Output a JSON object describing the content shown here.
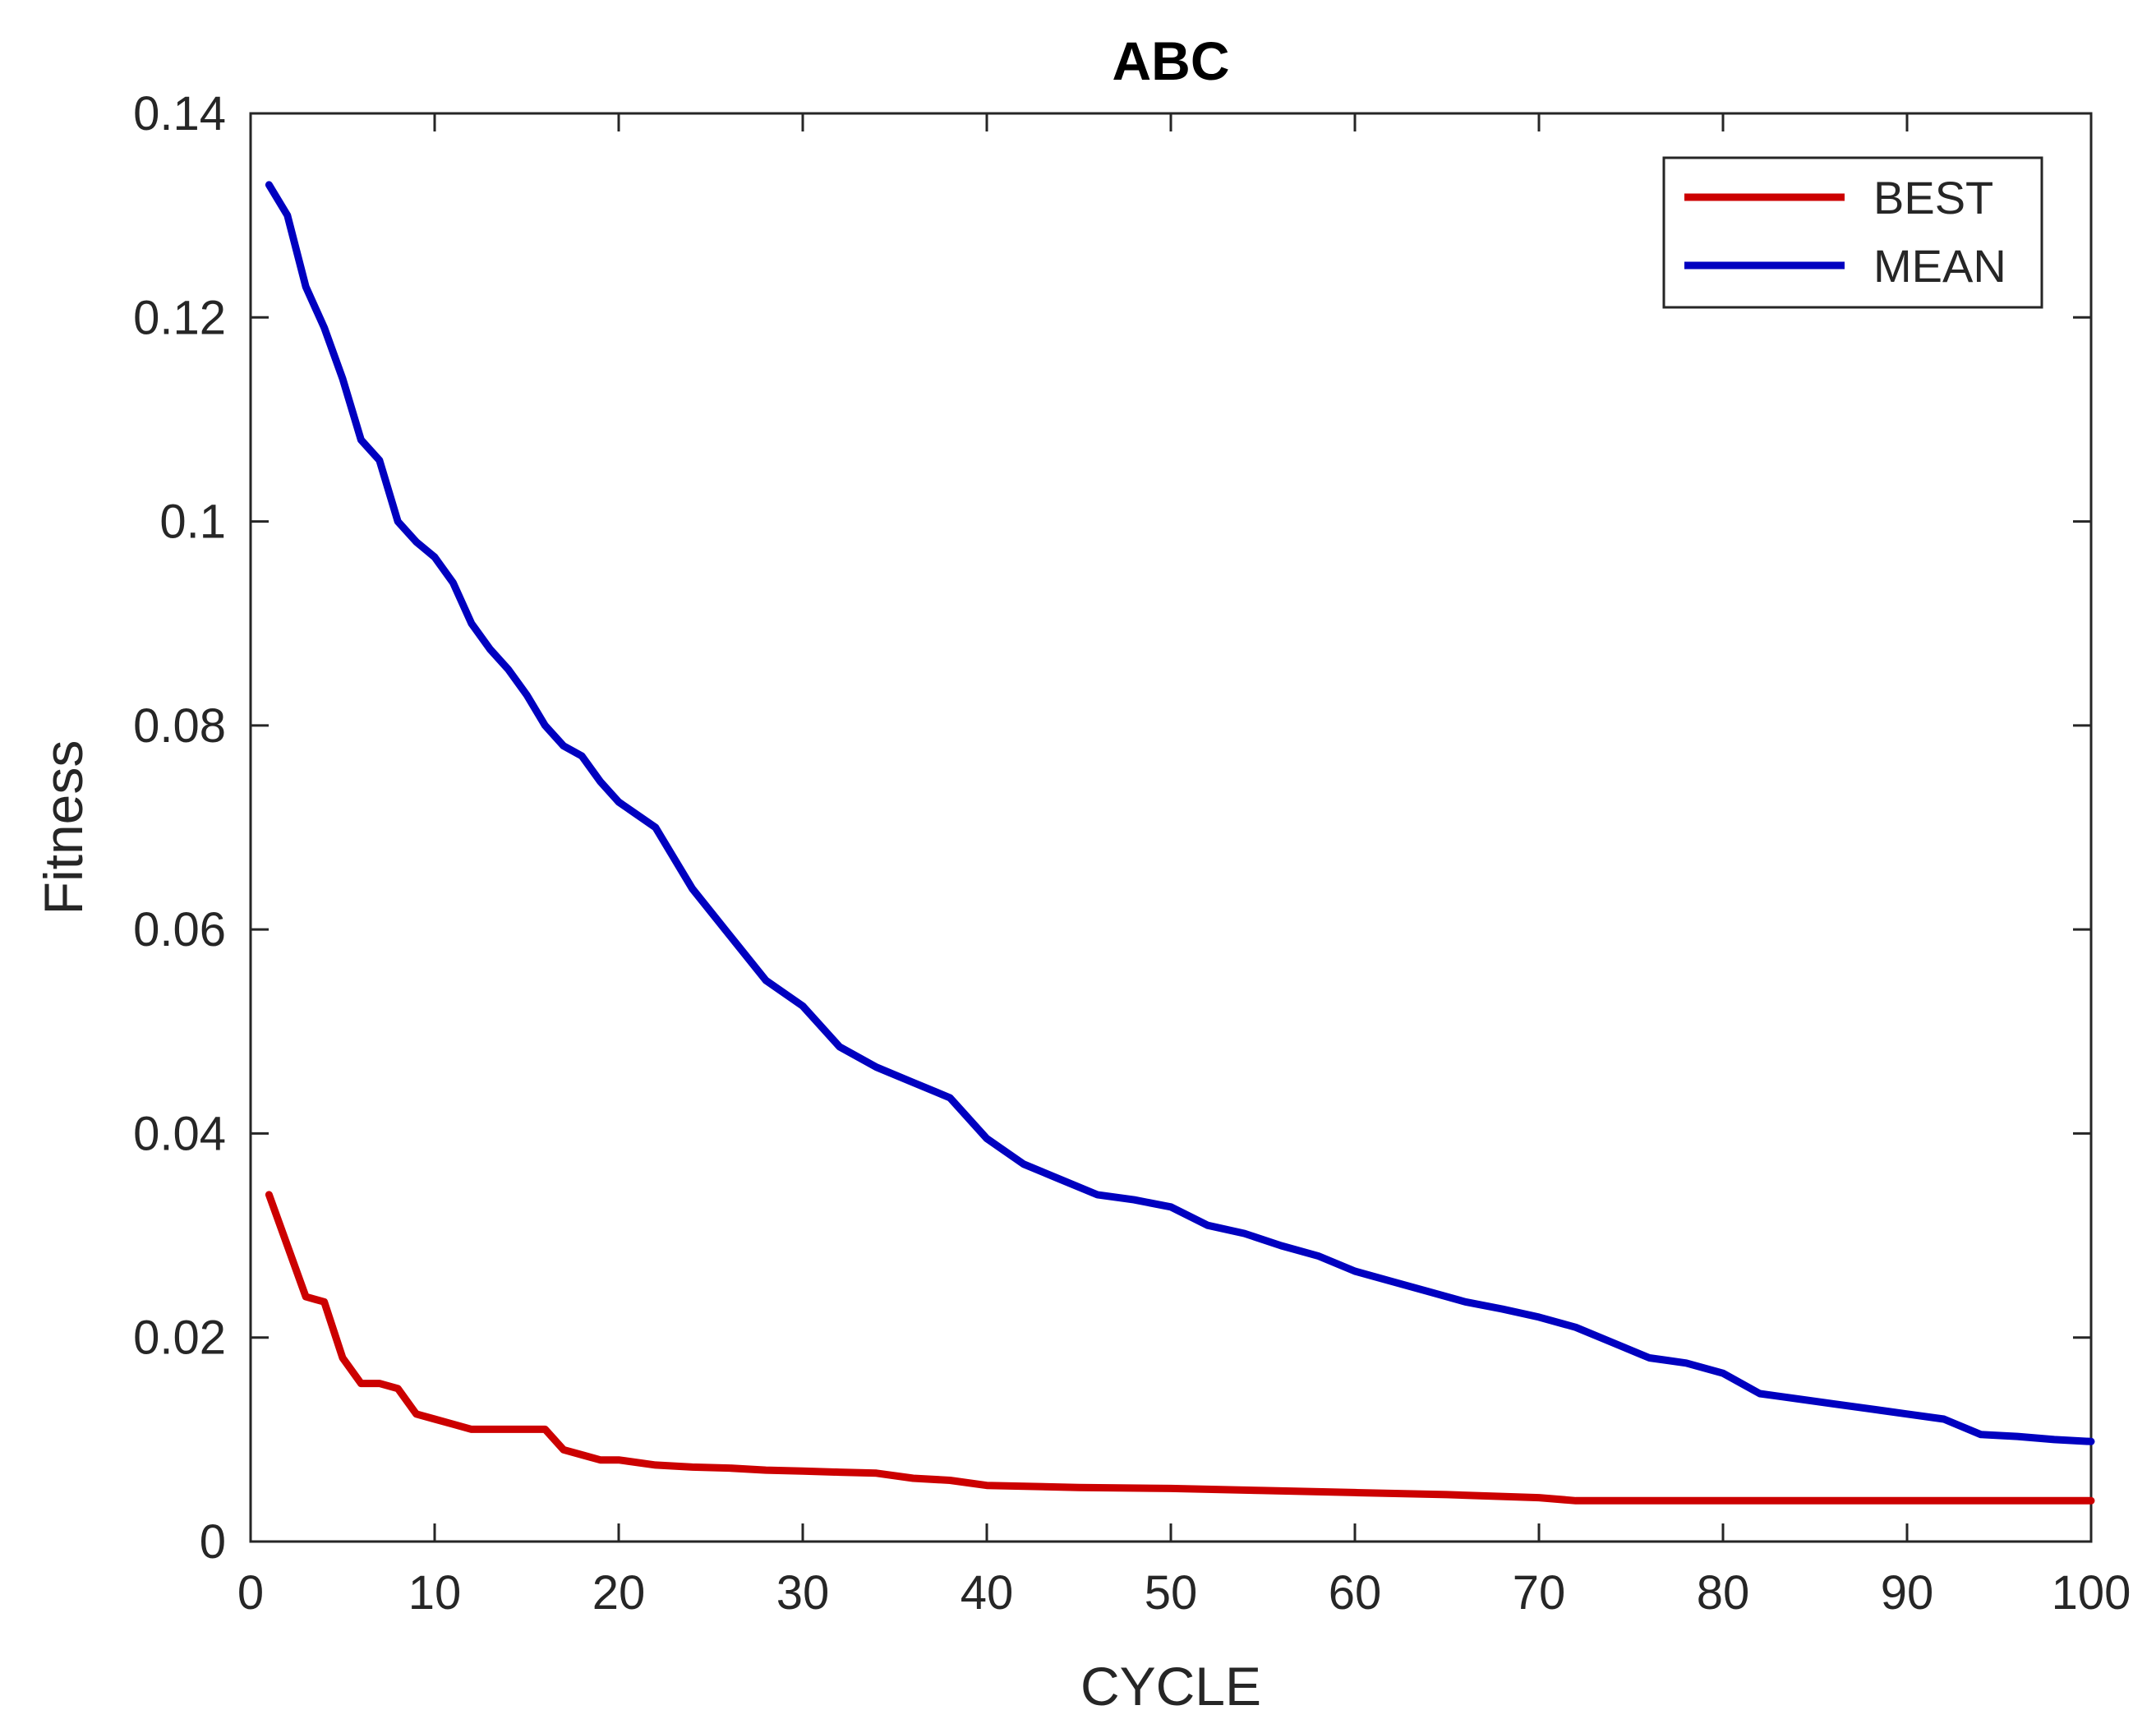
{
  "chart_data": {
    "type": "line",
    "title": "ABC",
    "xlabel": "CYCLE",
    "ylabel": "Fitness",
    "xlim": [
      0,
      100
    ],
    "ylim": [
      0,
      0.14
    ],
    "xticks": [
      0,
      10,
      20,
      30,
      40,
      50,
      60,
      70,
      80,
      90,
      100
    ],
    "xtick_labels": [
      "0",
      "10",
      "20",
      "30",
      "40",
      "50",
      "60",
      "70",
      "80",
      "90",
      "100"
    ],
    "yticks": [
      0,
      0.02,
      0.04,
      0.06,
      0.08,
      0.1,
      0.12,
      0.14
    ],
    "ytick_labels": [
      "0",
      "0.02",
      "0.04",
      "0.06",
      "0.08",
      "0.1",
      "0.12",
      "0.14"
    ],
    "grid": false,
    "legend_position": "top-right",
    "series": [
      {
        "name": "BEST",
        "color": "#cc0000",
        "x": [
          1,
          2,
          3,
          4,
          5,
          6,
          7,
          8,
          9,
          10,
          11,
          12,
          13,
          14,
          15,
          16,
          17,
          18,
          19,
          20,
          22,
          24,
          26,
          28,
          30,
          32,
          34,
          36,
          38,
          40,
          45,
          50,
          55,
          60,
          65,
          70,
          72,
          75,
          80,
          85,
          90,
          95,
          100
        ],
        "y": [
          0.034,
          0.029,
          0.024,
          0.0235,
          0.018,
          0.0155,
          0.0155,
          0.015,
          0.0125,
          0.012,
          0.0115,
          0.011,
          0.011,
          0.011,
          0.011,
          0.011,
          0.009,
          0.0085,
          0.008,
          0.008,
          0.0075,
          0.0073,
          0.0072,
          0.007,
          0.0069,
          0.0068,
          0.0067,
          0.0062,
          0.006,
          0.0055,
          0.0053,
          0.0052,
          0.005,
          0.0048,
          0.0046,
          0.0043,
          0.004,
          0.004,
          0.004,
          0.004,
          0.004,
          0.004,
          0.004
        ]
      },
      {
        "name": "MEAN",
        "color": "#0000c0",
        "x": [
          1,
          2,
          3,
          4,
          5,
          6,
          7,
          8,
          9,
          10,
          11,
          12,
          13,
          14,
          15,
          16,
          17,
          18,
          19,
          20,
          22,
          24,
          26,
          28,
          30,
          32,
          34,
          36,
          38,
          40,
          42,
          44,
          46,
          48,
          50,
          52,
          54,
          56,
          58,
          60,
          62,
          64,
          66,
          68,
          70,
          72,
          74,
          76,
          78,
          80,
          82,
          84,
          86,
          88,
          90,
          92,
          94,
          96,
          98,
          100
        ],
        "y": [
          0.133,
          0.13,
          0.123,
          0.119,
          0.114,
          0.108,
          0.106,
          0.1,
          0.098,
          0.0965,
          0.094,
          0.09,
          0.0875,
          0.0855,
          0.083,
          0.08,
          0.078,
          0.077,
          0.0745,
          0.0725,
          0.07,
          0.064,
          0.0595,
          0.055,
          0.0525,
          0.0485,
          0.0465,
          0.045,
          0.0435,
          0.0395,
          0.037,
          0.0355,
          0.034,
          0.0335,
          0.0328,
          0.031,
          0.0302,
          0.029,
          0.028,
          0.0265,
          0.0255,
          0.0245,
          0.0235,
          0.0228,
          0.022,
          0.021,
          0.0195,
          0.018,
          0.0175,
          0.0165,
          0.0145,
          0.014,
          0.0135,
          0.013,
          0.0125,
          0.012,
          0.0105,
          0.0103,
          0.01,
          0.0098
        ]
      }
    ]
  }
}
